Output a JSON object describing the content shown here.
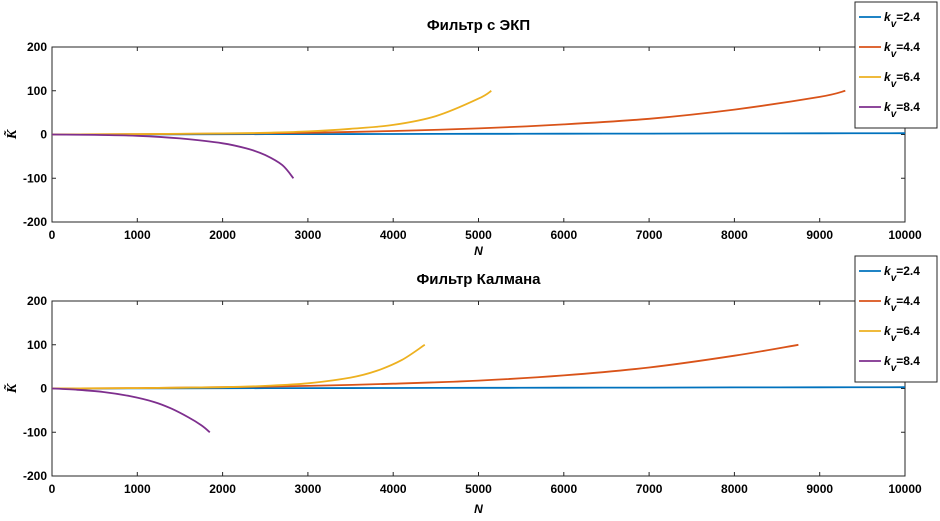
{
  "chart_data": [
    {
      "type": "line",
      "title": "Фильтр с ЭКП",
      "xlabel": "N",
      "ylabel": "K̃",
      "xlim": [
        0,
        10000
      ],
      "ylim": [
        -200,
        200
      ],
      "xticks": [
        "0",
        "1000",
        "2000",
        "3000",
        "4000",
        "5000",
        "6000",
        "7000",
        "8000",
        "9000",
        "10000"
      ],
      "yticks": [
        "200",
        "100",
        "0",
        "-100",
        "-200"
      ],
      "grid": false,
      "legend_position": "top-right",
      "series": [
        {
          "name": "k_v=2.4",
          "legend_sub": "v",
          "legend_value": "=2.4",
          "color": "#0072BD",
          "x": [
            0,
            1000,
            2000,
            3000,
            4000,
            5000,
            6000,
            7000,
            8000,
            9000,
            10000
          ],
          "y": [
            0,
            0.3,
            0.6,
            0.9,
            1.2,
            1.5,
            1.8,
            2.1,
            2.4,
            2.7,
            3
          ]
        },
        {
          "name": "k_v=4.4",
          "legend_sub": "v",
          "legend_value": "=4.4",
          "color": "#D95319",
          "x": [
            0,
            1000,
            2000,
            3000,
            4000,
            5000,
            6000,
            7000,
            8000,
            9000,
            9300
          ],
          "y": [
            0,
            1,
            2,
            4,
            8,
            14,
            23,
            36,
            57,
            86,
            100
          ]
        },
        {
          "name": "k_v=6.4",
          "legend_sub": "v",
          "legend_value": "=6.4",
          "color": "#EDB120",
          "x": [
            0,
            1000,
            2000,
            2500,
            3000,
            3500,
            4000,
            4500,
            5000,
            5150
          ],
          "y": [
            0,
            1,
            2.5,
            4,
            7,
            13,
            22,
            42,
            82,
            100
          ]
        },
        {
          "name": "k_v=8.4",
          "legend_sub": "v",
          "legend_value": "=8.4",
          "color": "#7E2F8E",
          "x": [
            0,
            500,
            1000,
            1500,
            2000,
            2300,
            2500,
            2700,
            2830
          ],
          "y": [
            0,
            -1,
            -3,
            -9,
            -20,
            -33,
            -47,
            -70,
            -100
          ]
        }
      ]
    },
    {
      "type": "line",
      "title": "Фильтр Калмана",
      "xlabel": "N",
      "ylabel": "K̃",
      "xlim": [
        0,
        10000
      ],
      "ylim": [
        -200,
        200
      ],
      "xticks": [
        "0",
        "1000",
        "2000",
        "3000",
        "4000",
        "5000",
        "6000",
        "7000",
        "8000",
        "9000",
        "10000"
      ],
      "yticks": [
        "200",
        "100",
        "0",
        "-100",
        "-200"
      ],
      "grid": false,
      "legend_position": "top-right",
      "series": [
        {
          "name": "k_v=2.4",
          "legend_sub": "v",
          "legend_value": "=2.4",
          "color": "#0072BD",
          "x": [
            0,
            1000,
            2000,
            3000,
            4000,
            5000,
            6000,
            7000,
            8000,
            9000,
            10000
          ],
          "y": [
            0,
            0.3,
            0.6,
            0.9,
            1.2,
            1.5,
            1.8,
            2.1,
            2.4,
            2.7,
            3
          ]
        },
        {
          "name": "k_v=4.4",
          "legend_sub": "v",
          "legend_value": "=4.4",
          "color": "#D95319",
          "x": [
            0,
            1000,
            2000,
            3000,
            4000,
            5000,
            6000,
            7000,
            8000,
            8750
          ],
          "y": [
            0,
            1,
            3,
            6,
            11,
            18,
            30,
            48,
            75,
            100
          ]
        },
        {
          "name": "k_v=6.4",
          "legend_sub": "v",
          "legend_value": "=6.4",
          "color": "#EDB120",
          "x": [
            0,
            1000,
            2000,
            2500,
            3000,
            3500,
            3800,
            4100,
            4370
          ],
          "y": [
            0,
            1,
            3,
            6,
            12,
            25,
            40,
            65,
            100
          ]
        },
        {
          "name": "k_v=8.4",
          "legend_sub": "v",
          "legend_value": "=8.4",
          "color": "#7E2F8E",
          "x": [
            0,
            300,
            600,
            900,
            1200,
            1400,
            1600,
            1750,
            1850
          ],
          "y": [
            0,
            -3,
            -8,
            -17,
            -31,
            -46,
            -66,
            -84,
            -100
          ]
        }
      ]
    }
  ]
}
